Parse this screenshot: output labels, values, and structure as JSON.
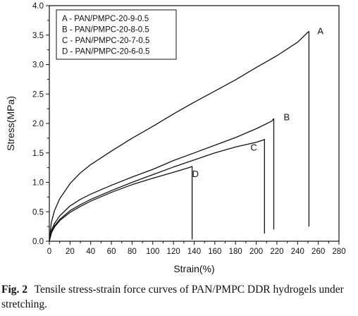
{
  "chart_data": {
    "type": "line",
    "xlabel": "Strain(%)",
    "ylabel": "Stress(MPa)",
    "xlim": [
      0,
      280
    ],
    "ylim": [
      0,
      4.0
    ],
    "xticks": [
      "0",
      "20",
      "40",
      "60",
      "80",
      "100",
      "120",
      "140",
      "160",
      "180",
      "200",
      "220",
      "240",
      "260",
      "280"
    ],
    "yticks": [
      "0.0",
      "0.5",
      "1.0",
      "1.5",
      "2.0",
      "2.5",
      "3.0",
      "3.5",
      "4.0"
    ],
    "legend_position": "top-left",
    "series": [
      {
        "name": "PAN/PMPC-20-9-0.5",
        "legend_label": "A -  PAN/PMPC-20-9-0.5",
        "end_label": "A",
        "x": [
          0,
          2,
          5,
          10,
          20,
          30,
          40,
          60,
          80,
          100,
          120,
          140,
          160,
          180,
          200,
          220,
          240,
          250,
          251,
          251
        ],
        "y": [
          0,
          0.32,
          0.52,
          0.72,
          0.98,
          1.16,
          1.3,
          1.53,
          1.75,
          1.95,
          2.16,
          2.36,
          2.55,
          2.74,
          2.95,
          3.15,
          3.38,
          3.55,
          3.56,
          0.25
        ]
      },
      {
        "name": "PAN/PMPC-20-8-0.5",
        "legend_label": "B -  PAN/PMPC-20-8-0.5",
        "end_label": "B",
        "x": [
          0,
          2,
          5,
          10,
          20,
          30,
          40,
          60,
          80,
          100,
          120,
          140,
          160,
          180,
          200,
          215,
          217,
          217
        ],
        "y": [
          0,
          0.18,
          0.3,
          0.43,
          0.6,
          0.71,
          0.8,
          0.95,
          1.09,
          1.22,
          1.37,
          1.5,
          1.63,
          1.76,
          1.91,
          2.04,
          2.08,
          0.2
        ]
      },
      {
        "name": "PAN/PMPC-20-7-0.5",
        "legend_label": "C -  PAN/PMPC-20-7-0.5",
        "end_label": "C",
        "x": [
          0,
          2,
          5,
          10,
          20,
          30,
          40,
          60,
          80,
          100,
          120,
          140,
          160,
          180,
          200,
          207,
          208,
          208
        ],
        "y": [
          0,
          0.15,
          0.26,
          0.37,
          0.52,
          0.62,
          0.71,
          0.86,
          1.0,
          1.13,
          1.26,
          1.38,
          1.5,
          1.6,
          1.68,
          1.72,
          1.73,
          0.13
        ]
      },
      {
        "name": "PAN/PMPC-20-6-0.5",
        "legend_label": "D -  PAN/PMPC-20-6-0.5",
        "end_label": "D",
        "x": [
          0,
          2,
          5,
          10,
          20,
          30,
          40,
          60,
          80,
          100,
          120,
          135,
          138,
          138
        ],
        "y": [
          0,
          0.14,
          0.24,
          0.35,
          0.49,
          0.59,
          0.68,
          0.83,
          0.96,
          1.07,
          1.17,
          1.25,
          1.27,
          0.03
        ]
      }
    ]
  },
  "caption": {
    "label": "Fig. 2",
    "text": "Tensile stress-strain force curves of PAN/PMPC DDR hydrogels under stretching."
  }
}
